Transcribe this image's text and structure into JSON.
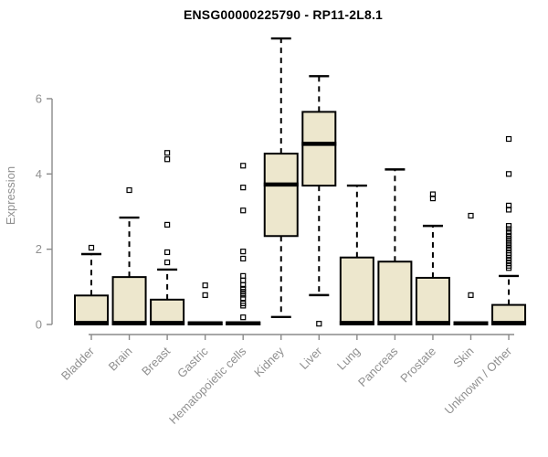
{
  "chart_data": {
    "type": "boxplot",
    "title": "ENSG00000225790 - RP11-2L8.1",
    "ylabel": "Expression",
    "xlabel": "",
    "ylim": [
      0,
      7.8
    ],
    "yticks": [
      0,
      2,
      4,
      6
    ],
    "grid": false,
    "legend": "none",
    "categories": [
      "Bladder",
      "Brain",
      "Breast",
      "Gastric",
      "Hematopoietic cells",
      "Kidney",
      "Liver",
      "Lung",
      "Pancreas",
      "Prostate",
      "Skin",
      "Unknown / Other"
    ],
    "series": [
      {
        "name": "Bladder",
        "whisker_low": 0,
        "q1": 0,
        "median": 0.04,
        "q3": 0.77,
        "whisker_high": 1.87,
        "outliers": [
          2.04
        ]
      },
      {
        "name": "Brain",
        "whisker_low": 0,
        "q1": 0,
        "median": 0.04,
        "q3": 1.26,
        "whisker_high": 2.84,
        "outliers": [
          3.57
        ]
      },
      {
        "name": "Breast",
        "whisker_low": 0,
        "q1": 0,
        "median": 0.04,
        "q3": 0.66,
        "whisker_high": 1.46,
        "outliers": [
          1.65,
          1.92,
          2.65,
          4.39,
          4.56
        ]
      },
      {
        "name": "Gastric",
        "whisker_low": 0,
        "q1": 0,
        "median": 0.03,
        "q3": 0.05,
        "whisker_high": 0.05,
        "outliers": [
          0.78,
          1.04
        ]
      },
      {
        "name": "Hematopoietic cells",
        "whisker_low": 0,
        "q1": 0,
        "median": 0.03,
        "q3": 0.05,
        "whisker_high": 0.05,
        "outliers": [
          0.19,
          0.5,
          0.56,
          0.7,
          0.79,
          0.87,
          0.95,
          1.05,
          1.17,
          1.29,
          1.75,
          1.94,
          3.03,
          3.64,
          4.22
        ]
      },
      {
        "name": "Kidney",
        "whisker_low": 0.2,
        "q1": 2.35,
        "median": 3.72,
        "q3": 4.54,
        "whisker_high": 7.6,
        "outliers": []
      },
      {
        "name": "Liver",
        "whisker_low": 0.78,
        "q1": 3.69,
        "median": 4.8,
        "q3": 5.65,
        "whisker_high": 6.6,
        "outliers": [
          0.02
        ]
      },
      {
        "name": "Lung",
        "whisker_low": 0,
        "q1": 0,
        "median": 0.04,
        "q3": 1.78,
        "whisker_high": 3.69,
        "outliers": []
      },
      {
        "name": "Pancreas",
        "whisker_low": 0,
        "q1": 0,
        "median": 0.04,
        "q3": 1.67,
        "whisker_high": 4.12,
        "outliers": []
      },
      {
        "name": "Prostate",
        "whisker_low": 0,
        "q1": 0,
        "median": 0.04,
        "q3": 1.24,
        "whisker_high": 2.62,
        "outliers": [
          3.35,
          3.46
        ]
      },
      {
        "name": "Skin",
        "whisker_low": 0,
        "q1": 0,
        "median": 0.03,
        "q3": 0.05,
        "whisker_high": 0.05,
        "outliers": [
          0.78,
          2.89
        ]
      },
      {
        "name": "Unknown / Other",
        "whisker_low": 0,
        "q1": 0,
        "median": 0.04,
        "q3": 0.52,
        "whisker_high": 1.29,
        "outliers": [
          1.5,
          1.56,
          1.63,
          1.7,
          1.77,
          1.84,
          1.9,
          1.97,
          2.04,
          2.12,
          2.2,
          2.28,
          2.36,
          2.45,
          2.54,
          2.62,
          3.05,
          3.16,
          4.0,
          4.93
        ]
      }
    ],
    "colors": {
      "box_fill": "#EDE7CD",
      "box_stroke": "#000000",
      "median": "#000000",
      "whisker": "#000000",
      "outlier": "#000000",
      "axis": "#8A8A8A",
      "axis_text": "#909090",
      "title": "#000000",
      "background": "#FFFFFF"
    }
  }
}
